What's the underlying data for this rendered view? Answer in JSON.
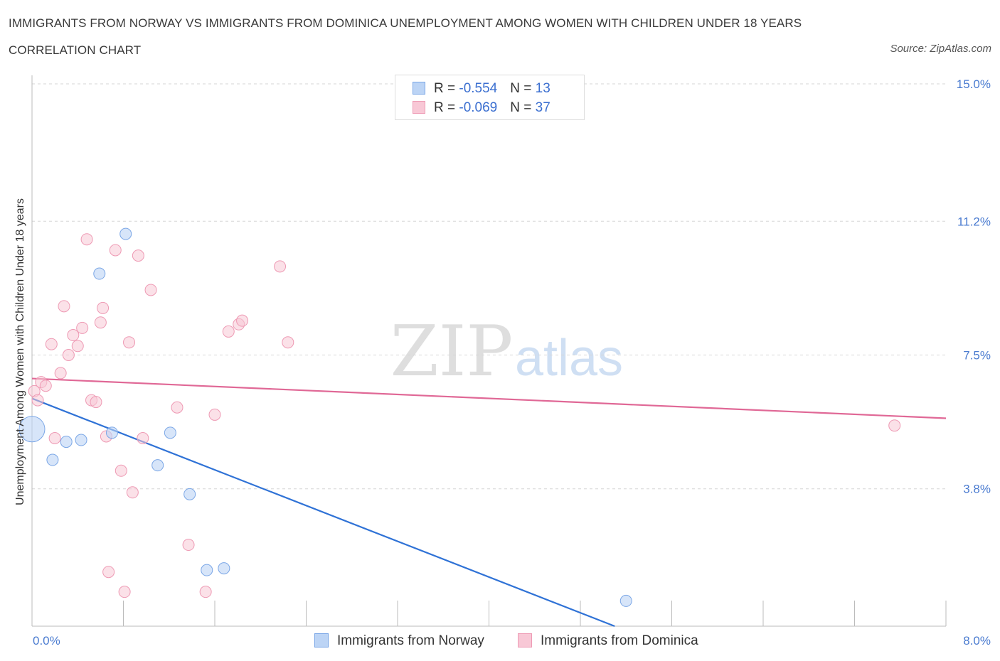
{
  "title": "IMMIGRANTS FROM NORWAY VS IMMIGRANTS FROM DOMINICA UNEMPLOYMENT AMONG WOMEN WITH CHILDREN UNDER 18 YEARS CORRELATION CHART",
  "source": "Source: ZipAtlas.com",
  "watermark": {
    "zip": "ZIP",
    "atlas": "atlas"
  },
  "colors": {
    "norway_fill": "#bcd4f5",
    "norway_stroke": "#7aa6e6",
    "norway_line": "#2f72d6",
    "dominica_fill": "#f8c8d6",
    "dominica_stroke": "#ee9ab4",
    "dominica_line": "#e06896"
  },
  "legend": {
    "norway": {
      "r_label": "R = ",
      "r_value": "-0.554",
      "n_label": "N = ",
      "n_value": "13"
    },
    "dominica": {
      "r_label": "R = ",
      "r_value": "-0.069",
      "n_label": "N = ",
      "n_value": "37"
    }
  },
  "bottom_legend": {
    "norway": "Immigrants from Norway",
    "dominica": "Immigrants from Dominica"
  },
  "chart_data": {
    "type": "scatter",
    "title": "IMMIGRANTS FROM NORWAY VS IMMIGRANTS FROM DOMINICA UNEMPLOYMENT AMONG WOMEN WITH CHILDREN UNDER 18 YEARS CORRELATION CHART",
    "xlabel": "",
    "ylabel": "Unemployment Among Women with Children Under 18 years",
    "xlim": [
      0,
      8.0
    ],
    "ylim": [
      0,
      15.0
    ],
    "x_tick_labels": [
      "0.0%",
      "8.0%"
    ],
    "y_ticks": [
      3.8,
      7.5,
      11.2,
      15.0
    ],
    "y_tick_labels": [
      "3.8%",
      "7.5%",
      "11.2%",
      "15.0%"
    ],
    "grid": true,
    "series": [
      {
        "name": "Immigrants from Norway",
        "points": [
          {
            "x": 0.0,
            "y": 5.45,
            "big": true
          },
          {
            "x": 0.18,
            "y": 4.6
          },
          {
            "x": 0.3,
            "y": 5.1
          },
          {
            "x": 0.43,
            "y": 5.15
          },
          {
            "x": 0.59,
            "y": 9.75
          },
          {
            "x": 0.7,
            "y": 5.35
          },
          {
            "x": 0.82,
            "y": 10.85
          },
          {
            "x": 1.1,
            "y": 4.45
          },
          {
            "x": 1.21,
            "y": 5.35
          },
          {
            "x": 1.38,
            "y": 3.65
          },
          {
            "x": 1.53,
            "y": 1.55
          },
          {
            "x": 1.68,
            "y": 1.6
          },
          {
            "x": 5.2,
            "y": 0.7
          }
        ],
        "trend": {
          "x1": 0.0,
          "y1": 6.3,
          "x2": 5.1,
          "y2": 0.0
        }
      },
      {
        "name": "Immigrants from Dominica",
        "points": [
          {
            "x": 0.02,
            "y": 6.5
          },
          {
            "x": 0.05,
            "y": 6.25
          },
          {
            "x": 0.08,
            "y": 6.75
          },
          {
            "x": 0.12,
            "y": 6.65
          },
          {
            "x": 0.17,
            "y": 7.8
          },
          {
            "x": 0.2,
            "y": 5.2
          },
          {
            "x": 0.25,
            "y": 7.0
          },
          {
            "x": 0.28,
            "y": 8.85
          },
          {
            "x": 0.32,
            "y": 7.5
          },
          {
            "x": 0.36,
            "y": 8.05
          },
          {
            "x": 0.4,
            "y": 7.75
          },
          {
            "x": 0.44,
            "y": 8.25
          },
          {
            "x": 0.48,
            "y": 10.7
          },
          {
            "x": 0.52,
            "y": 6.25
          },
          {
            "x": 0.56,
            "y": 6.2
          },
          {
            "x": 0.6,
            "y": 8.4
          },
          {
            "x": 0.62,
            "y": 8.8
          },
          {
            "x": 0.65,
            "y": 5.25
          },
          {
            "x": 0.73,
            "y": 10.4
          },
          {
            "x": 0.78,
            "y": 4.3
          },
          {
            "x": 0.81,
            "y": 0.95
          },
          {
            "x": 0.67,
            "y": 1.5
          },
          {
            "x": 0.85,
            "y": 7.85
          },
          {
            "x": 0.88,
            "y": 3.7
          },
          {
            "x": 0.93,
            "y": 10.25
          },
          {
            "x": 0.97,
            "y": 5.2
          },
          {
            "x": 1.04,
            "y": 9.3
          },
          {
            "x": 1.27,
            "y": 6.05
          },
          {
            "x": 1.37,
            "y": 2.25
          },
          {
            "x": 1.52,
            "y": 0.95
          },
          {
            "x": 1.6,
            "y": 5.85
          },
          {
            "x": 1.72,
            "y": 8.15
          },
          {
            "x": 1.81,
            "y": 8.35
          },
          {
            "x": 1.84,
            "y": 8.45
          },
          {
            "x": 2.17,
            "y": 9.95
          },
          {
            "x": 2.24,
            "y": 7.85
          },
          {
            "x": 7.55,
            "y": 5.55
          }
        ],
        "trend": {
          "x1": 0.0,
          "y1": 6.85,
          "x2": 8.0,
          "y2": 5.75
        }
      }
    ]
  }
}
